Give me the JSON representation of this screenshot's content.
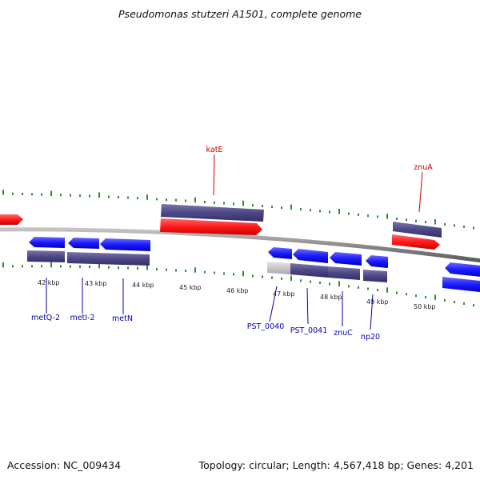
{
  "title": "Pseudomonas stutzeri A1501, complete genome",
  "footer": {
    "accession": "Accession: NC_009434",
    "summary": "Topology: circular; Length: 4,567,418 bp; Genes: 4,201"
  },
  "colors": {
    "forward_gene": "#ff1a1a",
    "reverse_gene": "#1a1aff",
    "cds": "#4d4785",
    "pseudo_cds": "#c9c9c9",
    "backbone": "#8a8a8a",
    "tick": "#2e8b2e",
    "forward_label": "#cc0000",
    "reverse_label": "#0000aa"
  },
  "scale": {
    "ticks": [
      "42 kbp",
      "43 kbp",
      "44 kbp",
      "45 kbp",
      "46 kbp",
      "47 kbp",
      "48 kbp",
      "49 kbp",
      "50 kbp"
    ]
  },
  "genes": {
    "forward": [
      "katE",
      "znuA"
    ],
    "reverse": [
      "metQ-2",
      "metI-2",
      "metN",
      "PST_0040",
      "PST_0041",
      "znuC",
      "np20"
    ]
  }
}
